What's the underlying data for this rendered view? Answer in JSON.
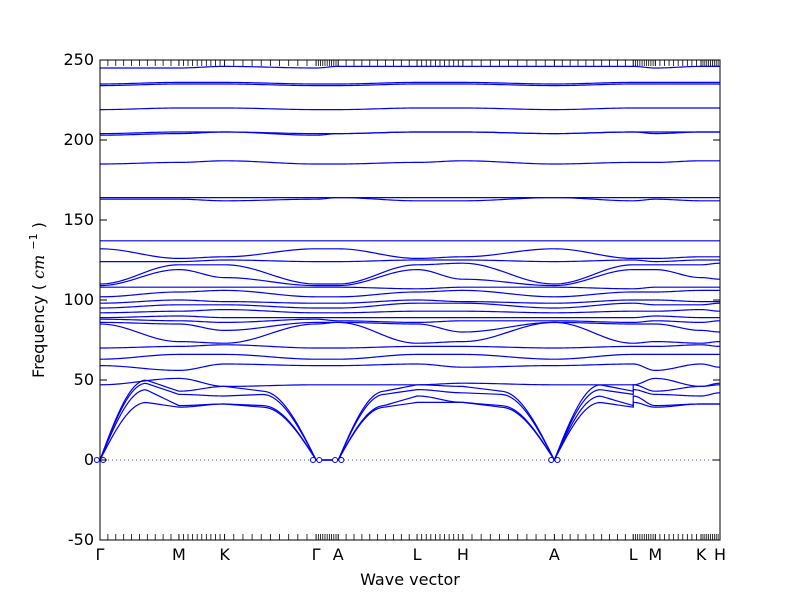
{
  "chart_data": {
    "type": "line",
    "xlabel": "Wave vector",
    "ylabel": "Frequency",
    "ylabel_unit": "cm",
    "ylabel_unit_sup": "−1",
    "ylim": [
      -50,
      250
    ],
    "yticks": [
      -50,
      0,
      50,
      100,
      150,
      200,
      250
    ],
    "grid": false,
    "line_color": "#0000ee",
    "zero_line_style": "dotted",
    "segments": [
      {
        "start": "Γ",
        "end": "M",
        "x_start": 0.0,
        "x_end": 0.5
      },
      {
        "start": "M",
        "end": "K",
        "x_start": 0.5,
        "x_end": 0.79
      },
      {
        "start": "K",
        "end": "Γ",
        "x_start": 0.79,
        "x_end": 1.37
      },
      {
        "start": "Γ",
        "end": "A",
        "x_start": 1.37,
        "x_end": 1.51
      },
      {
        "start": "A",
        "end": "L",
        "x_start": 1.51,
        "x_end": 2.01
      },
      {
        "start": "L",
        "end": "H",
        "x_start": 2.01,
        "x_end": 2.3
      },
      {
        "start": "H",
        "end": "A",
        "x_start": 2.3,
        "x_end": 2.88
      },
      {
        "start": "A",
        "end": "L",
        "x_start": 2.88,
        "x_end": 3.38
      },
      {
        "start": "L",
        "end": "M",
        "x_start": 3.38,
        "x_end": 3.52
      },
      {
        "start": "M",
        "end": "K",
        "x_start": 3.52,
        "x_end": 3.81
      },
      {
        "start": "K",
        "end": "H",
        "x_start": 3.81,
        "x_end": 3.93
      }
    ],
    "x_labels": [
      {
        "label": "Γ",
        "x": 0.0
      },
      {
        "label": "M",
        "x": 0.5
      },
      {
        "label": "K",
        "x": 0.79
      },
      {
        "label": "Γ",
        "x": 1.37
      },
      {
        "label": "A",
        "x": 1.51
      },
      {
        "label": "L",
        "x": 2.01
      },
      {
        "label": "H",
        "x": 2.3
      },
      {
        "label": "A",
        "x": 2.88
      },
      {
        "label": "L",
        "x": 3.38
      },
      {
        "label": "M",
        "x": 3.52
      },
      {
        "label": "K",
        "x": 3.81
      },
      {
        "label": "H",
        "x": 3.93
      }
    ],
    "acoustic": {
      "GM": [
        [
          36,
          33
        ],
        [
          44,
          34
        ],
        [
          48,
          41
        ],
        [
          50,
          43
        ]
      ],
      "MK": [
        [
          33,
          35
        ],
        [
          34,
          35
        ],
        [
          41,
          40
        ],
        [
          43,
          46
        ]
      ],
      "KG": [
        [
          35,
          33
        ],
        [
          35,
          34
        ],
        [
          40,
          41
        ],
        [
          46,
          43
        ]
      ],
      "AL": [
        [
          33,
          36
        ],
        [
          34,
          40
        ],
        [
          41,
          44
        ],
        [
          43,
          47
        ]
      ],
      "LH": [
        [
          36,
          36
        ],
        [
          40,
          36
        ],
        [
          44,
          42
        ],
        [
          47,
          46
        ]
      ],
      "HA": [
        [
          36,
          33
        ],
        [
          36,
          34
        ],
        [
          42,
          41
        ],
        [
          46,
          43
        ]
      ],
      "LM": [
        [
          36,
          33
        ],
        [
          40,
          34
        ],
        [
          44,
          41
        ],
        [
          47,
          43
        ]
      ],
      "MKp": [
        [
          33,
          35
        ],
        [
          34,
          35
        ],
        [
          41,
          40
        ],
        [
          43,
          46
        ]
      ],
      "KH": [
        [
          35,
          35
        ],
        [
          35,
          35
        ],
        [
          40,
          42
        ],
        [
          46,
          47
        ]
      ]
    },
    "series": [
      {
        "Gamma": 47,
        "M": 51,
        "K": 46,
        "A": 47,
        "L": 47,
        "H": 48
      },
      {
        "Gamma": 59,
        "M": 56,
        "K": 60,
        "A": 59,
        "L": 60,
        "H": 58
      },
      {
        "Gamma": 63,
        "M": 66,
        "K": 66,
        "A": 63,
        "L": 66,
        "H": 66
      },
      {
        "Gamma": 70,
        "M": 71,
        "K": 72,
        "A": 70,
        "L": 71,
        "H": 71
      },
      {
        "Gamma": 85,
        "M": 74,
        "K": 73,
        "A": 86,
        "L": 73,
        "H": 74
      },
      {
        "Gamma": 86,
        "M": 85,
        "K": 81,
        "A": 86,
        "L": 85,
        "H": 80
      },
      {
        "Gamma": 88,
        "M": 87,
        "K": 86,
        "A": 87,
        "L": 86,
        "H": 87
      },
      {
        "Gamma": 89,
        "M": 90,
        "K": 89,
        "A": 89,
        "L": 89,
        "H": 89
      },
      {
        "Gamma": 92,
        "M": 93,
        "K": 94,
        "A": 92,
        "L": 93,
        "H": 93
      },
      {
        "Gamma": 95,
        "M": 97,
        "K": 97,
        "A": 95,
        "L": 98,
        "H": 98
      },
      {
        "Gamma": 98,
        "M": 100,
        "K": 99,
        "A": 98,
        "L": 100,
        "H": 99
      },
      {
        "Gamma": 102,
        "M": 105,
        "K": 106,
        "A": 102,
        "L": 105,
        "H": 106
      },
      {
        "Gamma": 108,
        "M": 108,
        "K": 108,
        "A": 108,
        "L": 107,
        "H": 108
      },
      {
        "Gamma": 109,
        "M": 119,
        "K": 114,
        "A": 109,
        "L": 119,
        "H": 113
      },
      {
        "Gamma": 110,
        "M": 122,
        "K": 122,
        "A": 110,
        "L": 122,
        "H": 123
      },
      {
        "Gamma": 124,
        "M": 124,
        "K": 125,
        "A": 124,
        "L": 125,
        "H": 125
      },
      {
        "Gamma": 132,
        "M": 126,
        "K": 127,
        "A": 132,
        "L": 126,
        "H": 127
      },
      {
        "Gamma": 137,
        "M": 137,
        "K": 137,
        "A": 137,
        "L": 137,
        "H": 137
      },
      {
        "Gamma": 163,
        "M": 163,
        "K": 162,
        "A": 164,
        "L": 162,
        "H": 162
      },
      {
        "Gamma": 164,
        "M": 164,
        "K": 164,
        "A": 164,
        "L": 164,
        "H": 164
      },
      {
        "Gamma": 185,
        "M": 186,
        "K": 187,
        "A": 185,
        "L": 186,
        "H": 187
      },
      {
        "Gamma": 203,
        "M": 204,
        "K": 205,
        "A": 204,
        "L": 205,
        "H": 205
      },
      {
        "Gamma": 204,
        "M": 205,
        "K": 205,
        "A": 204,
        "L": 205,
        "H": 205
      },
      {
        "Gamma": 219,
        "M": 220,
        "K": 220,
        "A": 219,
        "L": 220,
        "H": 220
      },
      {
        "Gamma": 234,
        "M": 235,
        "K": 235,
        "A": 234,
        "L": 235,
        "H": 235
      },
      {
        "Gamma": 235,
        "M": 236,
        "K": 236,
        "A": 235,
        "L": 236,
        "H": 236
      },
      {
        "Gamma": 245,
        "M": 245,
        "K": 246,
        "A": 246,
        "L": 246,
        "H": 246
      }
    ]
  }
}
